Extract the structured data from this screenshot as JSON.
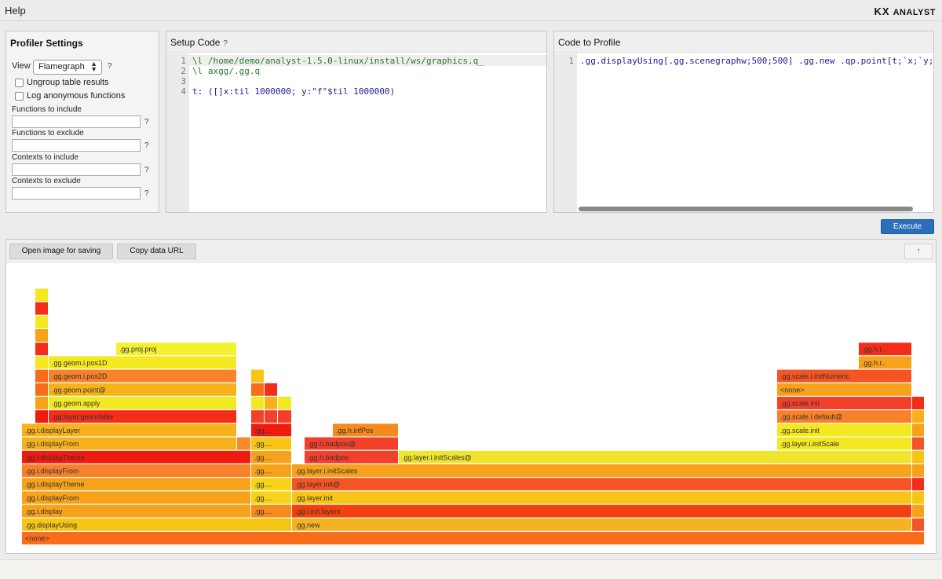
{
  "topbar": {
    "help_menu": "Help",
    "logo_kx": "KX",
    "logo_text": "ANALYST"
  },
  "profiler": {
    "title": "Profiler Settings",
    "view_label": "View",
    "view_value": "Flamegraph",
    "help_mark": "?",
    "ungroup_label": "Ungroup table results",
    "ungroup_checked": false,
    "log_anon_label": "Log anonymous functions",
    "log_anon_checked": false,
    "fields": [
      {
        "label": "Functions to include",
        "value": ""
      },
      {
        "label": "Functions to exclude",
        "value": ""
      },
      {
        "label": "Contexts to include",
        "value": ""
      },
      {
        "label": "Contexts to exclude",
        "value": ""
      }
    ]
  },
  "setup": {
    "title": "Setup Code",
    "help_mark": "?",
    "line_numbers": [
      "1",
      "2",
      "3",
      "4"
    ],
    "lines": [
      "\\l /home/demo/analyst-1.5.0-linux/install/ws/graphics.q_",
      "\\l axgg/.gg.q",
      "",
      "t: ([]x:til 1000000; y:\"f\"$til 1000000)"
    ]
  },
  "code_to_profile": {
    "title": "Code to Profile",
    "line_numbers": [
      "1"
    ],
    "lines": [
      ".gg.displayUsing[.gg.scenegraphw;500;500] .gg.new .qp.point[t;`x;`y;"
    ]
  },
  "execute_label": "Execute",
  "flame_toolbar": {
    "open_image": "Open image for saving",
    "copy_url": "Copy data URL",
    "up_arrow": "↑"
  },
  "colors": {
    "accent_blue": "#2b6fb8",
    "flame_palette": [
      "#f76d1c",
      "#f7a21b",
      "#f4e820",
      "#f42d18",
      "#f7c515",
      "#f55524",
      "#ee3b23"
    ]
  },
  "flamegraph": {
    "frames": [
      {
        "label": "<none>",
        "depth": 0,
        "start": 0,
        "end": 1150,
        "color": "#f76d1c"
      },
      {
        "label": ".gg.displayUsing",
        "depth": 1,
        "start": 0,
        "end": 344,
        "color": "#f7c515"
      },
      {
        "label": ".gg.new",
        "depth": 1,
        "start": 344,
        "end": 1134,
        "color": "#f4b322"
      },
      {
        "label": "",
        "depth": 1,
        "start": 1134,
        "end": 1150,
        "color": "#f55524"
      },
      {
        "label": ".gg.i.display",
        "depth": 2,
        "start": 0,
        "end": 292,
        "color": "#f7a21b"
      },
      {
        "label": ".gg....",
        "depth": 2,
        "start": 292,
        "end": 344,
        "color": "#f78a1c"
      },
      {
        "label": ".gg.i.init.layers",
        "depth": 2,
        "start": 344,
        "end": 1134,
        "color": "#f2400f"
      },
      {
        "label": "",
        "depth": 2,
        "start": 1134,
        "end": 1150,
        "color": "#f7a21b"
      },
      {
        "label": ".gg.i.displayFrom",
        "depth": 3,
        "start": 0,
        "end": 292,
        "color": "#f7a21b"
      },
      {
        "label": ".gg....",
        "depth": 3,
        "start": 292,
        "end": 344,
        "color": "#f7d31a"
      },
      {
        "label": ".gg.layer.init",
        "depth": 3,
        "start": 344,
        "end": 1134,
        "color": "#f7c515"
      },
      {
        "label": "",
        "depth": 3,
        "start": 1134,
        "end": 1150,
        "color": "#f7c515"
      },
      {
        "label": ".gg.i.displayTheme",
        "depth": 4,
        "start": 0,
        "end": 292,
        "color": "#f7a21b"
      },
      {
        "label": ".gg....",
        "depth": 4,
        "start": 292,
        "end": 344,
        "color": "#f7d31a"
      },
      {
        "label": ".gg.layer.init@",
        "depth": 4,
        "start": 344,
        "end": 1134,
        "color": "#f55524"
      },
      {
        "label": "",
        "depth": 4,
        "start": 1134,
        "end": 1150,
        "color": "#f42d18"
      },
      {
        "label": ".gg.i.displayFrom",
        "depth": 5,
        "start": 0,
        "end": 292,
        "color": "#f7822b"
      },
      {
        "label": ".gg....",
        "depth": 5,
        "start": 292,
        "end": 344,
        "color": "#f7a21b"
      },
      {
        "label": ".gg.layer.i.initScales",
        "depth": 5,
        "start": 344,
        "end": 1134,
        "color": "#f7a21b"
      },
      {
        "label": "",
        "depth": 5,
        "start": 1134,
        "end": 1150,
        "color": "#f7a21b"
      },
      {
        "label": ".gg.i.displayTheme",
        "depth": 6,
        "start": 0,
        "end": 292,
        "color": "#f11a0f"
      },
      {
        "label": ".gg....",
        "depth": 6,
        "start": 292,
        "end": 344,
        "color": "#f7a21b"
      },
      {
        "label": ".gg.h.badpos",
        "depth": 6,
        "start": 360,
        "end": 480,
        "color": "#f2402a"
      },
      {
        "label": ".gg.layer.i.initScales@",
        "depth": 6,
        "start": 480,
        "end": 1134,
        "color": "#f1e42e"
      },
      {
        "label": "",
        "depth": 6,
        "start": 1134,
        "end": 1150,
        "color": "#f7c515"
      },
      {
        "label": ".gg.i.displayFrom",
        "depth": 7,
        "start": 0,
        "end": 274,
        "color": "#f7b21b"
      },
      {
        "label": "",
        "depth": 7,
        "start": 274,
        "end": 292,
        "color": "#f78a2b"
      },
      {
        "label": ".gg....",
        "depth": 7,
        "start": 292,
        "end": 344,
        "color": "#f7c515"
      },
      {
        "label": ".gg.h.badpos@",
        "depth": 7,
        "start": 360,
        "end": 480,
        "color": "#f2402a"
      },
      {
        "label": ".gg.layer.i.initScale",
        "depth": 7,
        "start": 962,
        "end": 1134,
        "color": "#f4e820"
      },
      {
        "label": "",
        "depth": 7,
        "start": 1134,
        "end": 1150,
        "color": "#f55524"
      },
      {
        "label": ".gg.i.displayLayer",
        "depth": 8,
        "start": 0,
        "end": 274,
        "color": "#f7b21b"
      },
      {
        "label": ".gg....",
        "depth": 8,
        "start": 292,
        "end": 344,
        "color": "#f11a0f"
      },
      {
        "label": ".gg.h.infPos",
        "depth": 8,
        "start": 396,
        "end": 480,
        "color": "#f78a1c"
      },
      {
        "label": ".gg.scale.init",
        "depth": 8,
        "start": 962,
        "end": 1134,
        "color": "#f4e820"
      },
      {
        "label": "",
        "depth": 8,
        "start": 1134,
        "end": 1150,
        "color": "#f7a21b"
      },
      {
        "label": "",
        "depth": 9,
        "start": 17,
        "end": 34,
        "color": "#f11a0f"
      },
      {
        "label": ".gg.layer.geomtable",
        "depth": 9,
        "start": 34,
        "end": 274,
        "color": "#f42d18"
      },
      {
        "label": "",
        "depth": 9,
        "start": 292,
        "end": 309,
        "color": "#f2402a"
      },
      {
        "label": "",
        "depth": 9,
        "start": 309,
        "end": 326,
        "color": "#f2402a"
      },
      {
        "label": "",
        "depth": 9,
        "start": 326,
        "end": 344,
        "color": "#f2402a"
      },
      {
        "label": ".gg.scale.i.default@",
        "depth": 9,
        "start": 962,
        "end": 1134,
        "color": "#f7822b"
      },
      {
        "label": "",
        "depth": 9,
        "start": 1134,
        "end": 1150,
        "color": "#f7b21b"
      },
      {
        "label": "",
        "depth": 10,
        "start": 17,
        "end": 34,
        "color": "#f7a21b"
      },
      {
        "label": ".gg.geom.apply",
        "depth": 10,
        "start": 34,
        "end": 274,
        "color": "#f4e820"
      },
      {
        "label": "",
        "depth": 10,
        "start": 292,
        "end": 309,
        "color": "#f4e820"
      },
      {
        "label": "",
        "depth": 10,
        "start": 309,
        "end": 326,
        "color": "#f7b21b"
      },
      {
        "label": "",
        "depth": 10,
        "start": 326,
        "end": 344,
        "color": "#f4e820"
      },
      {
        "label": ".gg.scale.init",
        "depth": 10,
        "start": 962,
        "end": 1134,
        "color": "#f2402a"
      },
      {
        "label": "",
        "depth": 10,
        "start": 1134,
        "end": 1150,
        "color": "#f42d18"
      },
      {
        "label": "",
        "depth": 11,
        "start": 17,
        "end": 34,
        "color": "#f76d1c"
      },
      {
        "label": ".gg.geom.point@",
        "depth": 11,
        "start": 34,
        "end": 274,
        "color": "#f7b21b"
      },
      {
        "label": "",
        "depth": 11,
        "start": 292,
        "end": 309,
        "color": "#f76d1c"
      },
      {
        "label": "",
        "depth": 11,
        "start": 309,
        "end": 326,
        "color": "#f42d18"
      },
      {
        "label": "<none>",
        "depth": 11,
        "start": 962,
        "end": 1134,
        "color": "#f7a21b"
      },
      {
        "label": "",
        "depth": 12,
        "start": 17,
        "end": 34,
        "color": "#f76d1c"
      },
      {
        "label": ".gg.geom.i.pos2D",
        "depth": 12,
        "start": 34,
        "end": 274,
        "color": "#f7822b"
      },
      {
        "label": "",
        "depth": 12,
        "start": 292,
        "end": 309,
        "color": "#f7c515"
      },
      {
        "label": ".gg.scale.i.initNumeric",
        "depth": 12,
        "start": 962,
        "end": 1134,
        "color": "#f55524"
      },
      {
        "label": "",
        "depth": 13,
        "start": 17,
        "end": 34,
        "color": "#f4e820"
      },
      {
        "label": ".gg.geom.i.pos1D",
        "depth": 13,
        "start": 34,
        "end": 274,
        "color": "#f4e820"
      },
      {
        "label": ".gg.h.r..",
        "depth": 13,
        "start": 1066,
        "end": 1134,
        "color": "#f7a21b"
      },
      {
        "label": "",
        "depth": 14,
        "start": 17,
        "end": 34,
        "color": "#f42d18"
      },
      {
        "label": ".gg.proj.proj",
        "depth": 14,
        "start": 120,
        "end": 274,
        "color": "#f1f12e"
      },
      {
        "label": ".gg.h.i..",
        "depth": 14,
        "start": 1066,
        "end": 1134,
        "color": "#f42d18"
      },
      {
        "label": "",
        "depth": 15,
        "start": 17,
        "end": 34,
        "color": "#f7a21b"
      },
      {
        "label": "",
        "depth": 16,
        "start": 17,
        "end": 34,
        "color": "#f4e820"
      },
      {
        "label": "",
        "depth": 17,
        "start": 17,
        "end": 34,
        "color": "#f42d18"
      },
      {
        "label": "",
        "depth": 18,
        "start": 17,
        "end": 34,
        "color": "#f4e820"
      }
    ]
  }
}
